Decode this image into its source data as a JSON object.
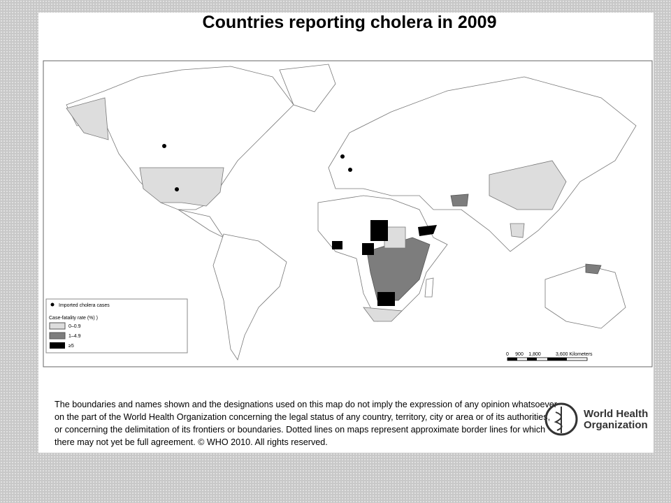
{
  "header": {
    "title": "Countries reporting cholera in 2009"
  },
  "legend": {
    "imported": "Imported cholera cases",
    "heading": "Case-fatality rate (%) )",
    "items": [
      "0–0.9",
      "1–4.9",
      "≥5"
    ]
  },
  "scale_bar": {
    "labels": [
      "0",
      "900",
      "1,800",
      "3,600 Kilometers"
    ]
  },
  "disclaimer": {
    "lines": [
      "The boundaries and names shown and the designations used on this map do not imply the expression of any opinion whatsoever",
      "on the part of the World Health Organization concerning the legal status of any country, territory, city or area or of its authorities,",
      "or concerning the delimitation of its frontiers or boundaries.  Dotted lines on maps represent approximate border lines for which",
      "there may not yet be full agreement. © WHO 2010. All rights reserved."
    ]
  },
  "logo": {
    "lines": [
      "World Health",
      "Organization"
    ]
  }
}
